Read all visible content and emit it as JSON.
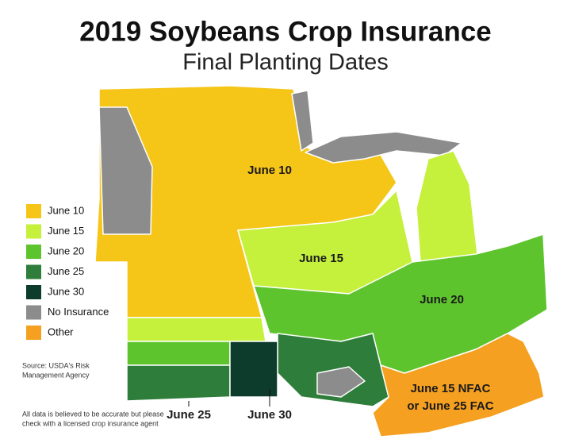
{
  "header": {
    "title": "2019 Soybeans Crop Insurance",
    "subtitle": "Final Planting Dates"
  },
  "legend": {
    "items": [
      {
        "label": "June 10",
        "color": "#f5c518"
      },
      {
        "label": "June 15",
        "color": "#c5f03c"
      },
      {
        "label": "June 20",
        "color": "#5ec42e"
      },
      {
        "label": "June 25",
        "color": "#2e7d3a"
      },
      {
        "label": "June 30",
        "color": "#0d3b2c"
      },
      {
        "label": "No Insurance",
        "color": "#8c8c8c"
      },
      {
        "label": "Other",
        "color": "#f5a020"
      }
    ]
  },
  "map_labels": [
    "June 10",
    "June 15",
    "June 20",
    "June 15 NFAC",
    "or June 25 FAC",
    "June 25",
    "June 30"
  ],
  "footer": {
    "source": [
      "Source: USDA's Risk",
      "Management Agency"
    ],
    "disclaimer": [
      "All data is believed to be accurate but please",
      "check with a licensed crop insurance agent"
    ]
  }
}
